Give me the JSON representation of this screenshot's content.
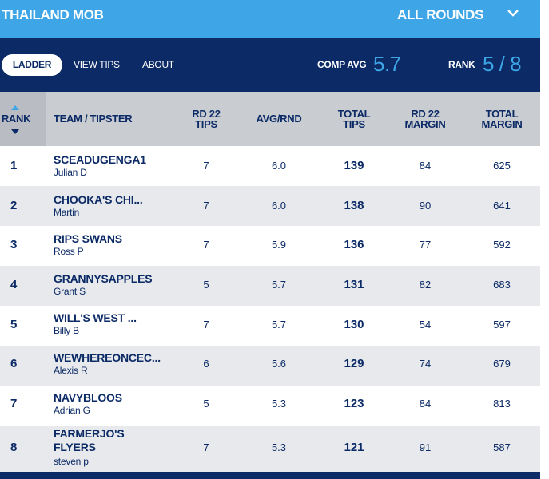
{
  "header": {
    "comp_name": "THAILAND MOB",
    "round_select": "ALL ROUNDS",
    "dropdown_icon": "chevron-down-icon"
  },
  "nav": {
    "tabs": [
      {
        "label": "LADDER",
        "active": true
      },
      {
        "label": "VIEW TIPS",
        "active": false
      },
      {
        "label": "ABOUT",
        "active": false
      }
    ],
    "comp_avg_label": "COMP AVG",
    "comp_avg_value": "5.7",
    "rank_label": "RANK",
    "rank_value": "5 / 8"
  },
  "table": {
    "columns": {
      "rank": "RANK",
      "team": "TEAM / TIPSTER",
      "rd_tips": [
        "RD 22",
        "TIPS"
      ],
      "avg": "AVG/RND",
      "total_tips": [
        "TOTAL",
        "TIPS"
      ],
      "rd_margin": [
        "RD 22",
        "MARGIN"
      ],
      "total_margin": [
        "TOTAL",
        "MARGIN"
      ]
    },
    "rows": [
      {
        "rank": "1",
        "team": "SCEADUGENGA1",
        "tipster": "Julian D",
        "rd_tips": "7",
        "avg": "6.0",
        "total_tips": "139",
        "rd_margin": "84",
        "total_margin": "625"
      },
      {
        "rank": "2",
        "team": "CHOOKA'S CHI...",
        "tipster": "Martin",
        "rd_tips": "7",
        "avg": "6.0",
        "total_tips": "138",
        "rd_margin": "90",
        "total_margin": "641"
      },
      {
        "rank": "3",
        "team": "RIPS SWANS",
        "tipster": "Ross P",
        "rd_tips": "7",
        "avg": "5.9",
        "total_tips": "136",
        "rd_margin": "77",
        "total_margin": "592"
      },
      {
        "rank": "4",
        "team": "GRANNYSAPPLES",
        "tipster": "Grant S",
        "rd_tips": "5",
        "avg": "5.7",
        "total_tips": "131",
        "rd_margin": "82",
        "total_margin": "683"
      },
      {
        "rank": "5",
        "team": "WILL'S WEST ...",
        "tipster": "Billy B",
        "rd_tips": "7",
        "avg": "5.7",
        "total_tips": "130",
        "rd_margin": "54",
        "total_margin": "597"
      },
      {
        "rank": "6",
        "team": "WEWHEREONCEC...",
        "tipster": "Alexis R",
        "rd_tips": "6",
        "avg": "5.6",
        "total_tips": "129",
        "rd_margin": "74",
        "total_margin": "679"
      },
      {
        "rank": "7",
        "team": "NAVYBLOOS",
        "tipster": "Adrian G",
        "rd_tips": "5",
        "avg": "5.3",
        "total_tips": "123",
        "rd_margin": "84",
        "total_margin": "813"
      },
      {
        "rank": "8",
        "team": "FARMERJO'S FLYERS",
        "tipster": "steven p",
        "rd_tips": "7",
        "avg": "5.3",
        "total_tips": "121",
        "rd_margin": "91",
        "total_margin": "587"
      }
    ]
  },
  "colors": {
    "brand_light_blue": "#3ea6e6",
    "navy": "#0b2a66",
    "header_grey": "#c9ccd1",
    "row_stripe": "#e7e9ec"
  }
}
